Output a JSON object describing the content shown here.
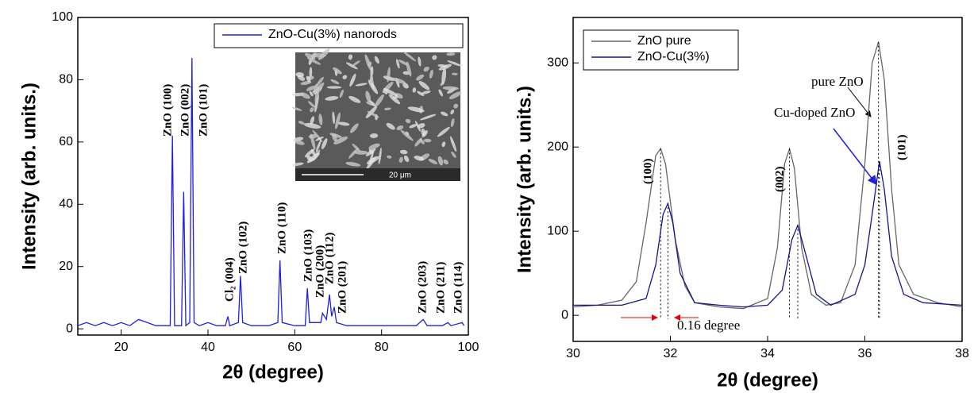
{
  "chart_data": [
    {
      "type": "line",
      "ylabel": "Intensity (arb. units.)",
      "xlabel": "2θ (degree)",
      "xlim": [
        10,
        100
      ],
      "xticks": [
        20,
        40,
        60,
        80,
        100
      ],
      "ylim": [
        -2,
        100
      ],
      "yticks": [
        0,
        20,
        40,
        60,
        80,
        100
      ],
      "legend": "top-right",
      "series": [
        {
          "name": "ZnO-Cu(3%) nanorods",
          "color": "#1f1fe0",
          "x": [
            10,
            12,
            14,
            16,
            18,
            20,
            22,
            24,
            26,
            28,
            30,
            31.3,
            31.8,
            32.3,
            33.9,
            34.4,
            34.9,
            35.8,
            36.3,
            36.8,
            38,
            40,
            42,
            44,
            44.6,
            45,
            47,
            47.5,
            48,
            50,
            52,
            54,
            56.1,
            56.6,
            57.1,
            60,
            62.4,
            62.9,
            63.4,
            66,
            66.4,
            67.3,
            68,
            68.5,
            69.1,
            69.6,
            72,
            76,
            80,
            84,
            88,
            89.6,
            90.5,
            94,
            95.3,
            96,
            98.6,
            99
          ],
          "values": [
            1,
            2,
            1,
            2,
            1,
            2,
            1,
            3,
            2,
            1,
            1,
            1,
            62,
            1,
            1,
            44,
            1,
            2,
            87,
            2,
            1,
            2,
            1,
            1,
            4,
            1,
            2,
            17,
            2,
            1,
            1,
            1,
            2,
            22,
            2,
            1,
            1,
            13,
            2,
            2,
            5,
            3,
            11,
            4,
            7,
            2,
            1,
            1,
            1,
            1,
            1,
            3,
            1,
            1,
            2,
            1,
            2,
            1
          ]
        }
      ],
      "annotations": [
        "ZnO (100)",
        "ZnO (002)",
        "ZnO (101)",
        "Cl₂ (004)",
        "ZnO (102)",
        "ZnO (110)",
        "ZnO (103)",
        "ZnO (200)",
        "ZnO (112)",
        "ZnO (201)",
        "ZnO (203)",
        "ZnO (211)",
        "ZnO (114)"
      ],
      "inset_scale": "20 μm"
    },
    {
      "type": "line",
      "ylabel": "Intensity (arb. units.)",
      "xlabel": "2θ (degree)",
      "xlim": [
        30,
        38
      ],
      "xticks": [
        30,
        32,
        34,
        36,
        38
      ],
      "ylim": [
        -31,
        354
      ],
      "yticks": [
        0,
        100,
        200,
        300
      ],
      "legend": "top-left",
      "drop_lines": true,
      "series": [
        {
          "name": "ZnO pure",
          "color": "#666666",
          "x": [
            30,
            30.5,
            31,
            31.3,
            31.5,
            31.7,
            31.8,
            31.9,
            32.1,
            32.3,
            32.5,
            33,
            33.5,
            34,
            34.2,
            34.35,
            34.45,
            34.55,
            34.7,
            34.9,
            35.2,
            35.5,
            35.8,
            36,
            36.15,
            36.28,
            36.4,
            36.55,
            36.7,
            37,
            37.5,
            38
          ],
          "values": [
            10,
            12,
            18,
            40,
            110,
            190,
            198,
            180,
            90,
            35,
            15,
            10,
            8,
            20,
            80,
            180,
            198,
            175,
            80,
            25,
            12,
            15,
            60,
            180,
            300,
            325,
            280,
            150,
            60,
            25,
            15,
            10
          ]
        },
        {
          "name": "ZnO-Cu(3%)",
          "color": "#14148c",
          "x": [
            30,
            31,
            31.5,
            31.7,
            31.85,
            31.95,
            32.05,
            32.2,
            32.5,
            33,
            33.5,
            34,
            34.3,
            34.5,
            34.62,
            34.75,
            35,
            35.3,
            35.8,
            36,
            36.15,
            36.3,
            36.4,
            36.55,
            36.8,
            37.2,
            38
          ],
          "values": [
            12,
            12,
            20,
            60,
            120,
            133,
            110,
            50,
            15,
            12,
            10,
            12,
            30,
            90,
            107,
            80,
            25,
            12,
            25,
            60,
            120,
            183,
            150,
            70,
            25,
            15,
            12
          ]
        }
      ],
      "annotations": [
        "(100)",
        "(002)",
        "(101)",
        "pure ZnO",
        "Cu-doped ZnO",
        "0.16 degree"
      ]
    }
  ]
}
